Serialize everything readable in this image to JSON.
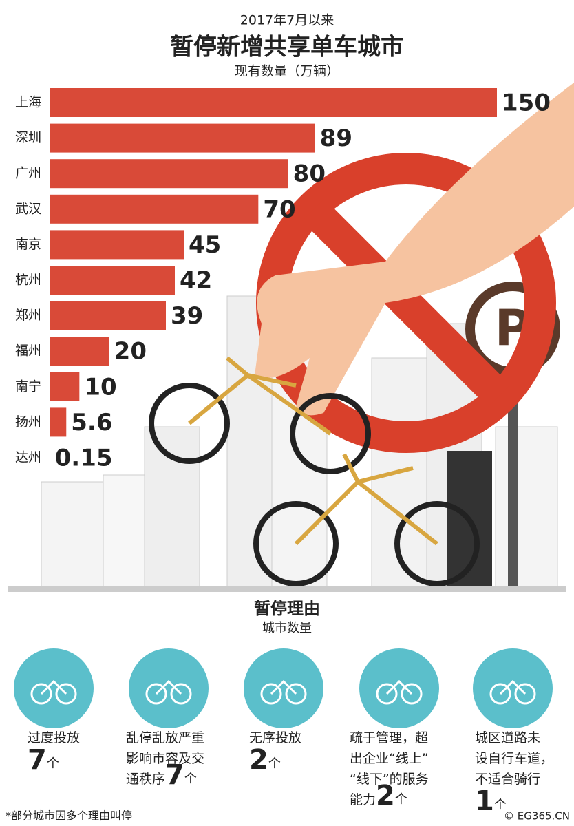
{
  "chart_data": {
    "type": "bar",
    "pretitle": "2017年7月以来",
    "title": "暂停新增共享单车城市",
    "subtitle": "现有数量（万辆）",
    "categories": [
      "上海",
      "深圳",
      "广州",
      "武汉",
      "南京",
      "杭州",
      "郑州",
      "福州",
      "南宁",
      "扬州",
      "达州"
    ],
    "values": [
      150,
      89,
      80,
      70,
      45,
      42,
      39,
      20,
      10,
      5.6,
      0.15
    ],
    "color": "#d94a38",
    "orientation": "horizontal"
  },
  "reasons": {
    "title": "暂停理由",
    "subtitle": "城市数量",
    "unit": "个",
    "items": [
      {
        "lines": [
          "过度投放"
        ],
        "count": 7,
        "inline_count": false
      },
      {
        "lines": [
          "乱停乱放严重",
          "影响市容及交",
          "通秩序"
        ],
        "count": 7,
        "inline_count": true
      },
      {
        "lines": [
          "无序投放"
        ],
        "count": 2,
        "inline_count": false
      },
      {
        "lines": [
          "疏于管理，超",
          "出企业“线上”",
          "“线下”的服务",
          "能力"
        ],
        "count": 2,
        "inline_count": true
      },
      {
        "lines": [
          "城区道路未",
          "设自行车道，",
          "不适合骑行"
        ],
        "count": 1,
        "inline_count": false
      }
    ]
  },
  "footnote": "*部分城市因多个理由叫停",
  "credit": "© EG365.CN"
}
